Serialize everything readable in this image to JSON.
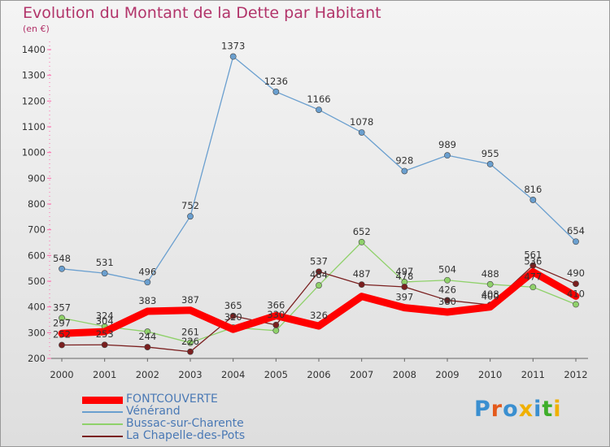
{
  "title": "Evolution du Montant de la Dette par Habitant",
  "unit": "(en €)",
  "logo": {
    "text": "Proxiti",
    "letter_colors": [
      "#3a8fd0",
      "#e45a1c",
      "#3a8fd0",
      "#f0b000",
      "#3a8fd0",
      "#3fae2a",
      "#f0b000"
    ]
  },
  "chart_data": {
    "type": "line",
    "categories": [
      "2000",
      "2001",
      "2002",
      "2003",
      "2004",
      "2005",
      "2006",
      "2007",
      "2008",
      "2009",
      "2010",
      "2011",
      "2012"
    ],
    "ylim": [
      200,
      1400
    ],
    "yticks": [
      "200",
      "300",
      "400",
      "500",
      "600",
      "700",
      "800",
      "900",
      "1000",
      "1100",
      "1200",
      "1300",
      "1400"
    ],
    "grid": false,
    "legend_position": "bottom-left",
    "series": [
      {
        "name": "FONTCOUVERTE",
        "color": "#ff0000",
        "values": [
          297,
          304,
          383,
          387,
          313,
          366,
          326,
          441,
          397,
          380,
          400,
          536,
          442
        ],
        "labels": [
          "297",
          "304",
          "383",
          "387",
          "",
          "366",
          "326",
          "",
          "397",
          "380",
          "400",
          "536",
          ""
        ]
      },
      {
        "name": "Vénérand",
        "color": "#6a9fcf",
        "values": [
          548,
          531,
          496,
          752,
          1373,
          1236,
          1166,
          1078,
          928,
          989,
          955,
          816,
          654
        ],
        "labels": [
          "548",
          "531",
          "496",
          "752",
          "1373",
          "1236",
          "1166",
          "1078",
          "928",
          "989",
          "955",
          "816",
          "654"
        ]
      },
      {
        "name": "Bussac-sur-Charente",
        "color": "#8fd16a",
        "values": [
          357,
          324,
          304,
          261,
          320,
          308,
          484,
          652,
          497,
          504,
          488,
          477,
          410
        ],
        "labels": [
          "357",
          "324",
          "",
          "261",
          "320",
          "",
          "484",
          "652",
          "497",
          "504",
          "488",
          "477",
          "410"
        ]
      },
      {
        "name": "La Chapelle-des-Pots",
        "color": "#7a1f1f",
        "values": [
          252,
          253,
          244,
          226,
          365,
          330,
          537,
          487,
          478,
          426,
          408,
          561,
          490
        ],
        "labels": [
          "252",
          "253",
          "244",
          "226",
          "365",
          "330",
          "537",
          "487",
          "478",
          "426",
          "408",
          "561",
          "490"
        ]
      }
    ]
  }
}
